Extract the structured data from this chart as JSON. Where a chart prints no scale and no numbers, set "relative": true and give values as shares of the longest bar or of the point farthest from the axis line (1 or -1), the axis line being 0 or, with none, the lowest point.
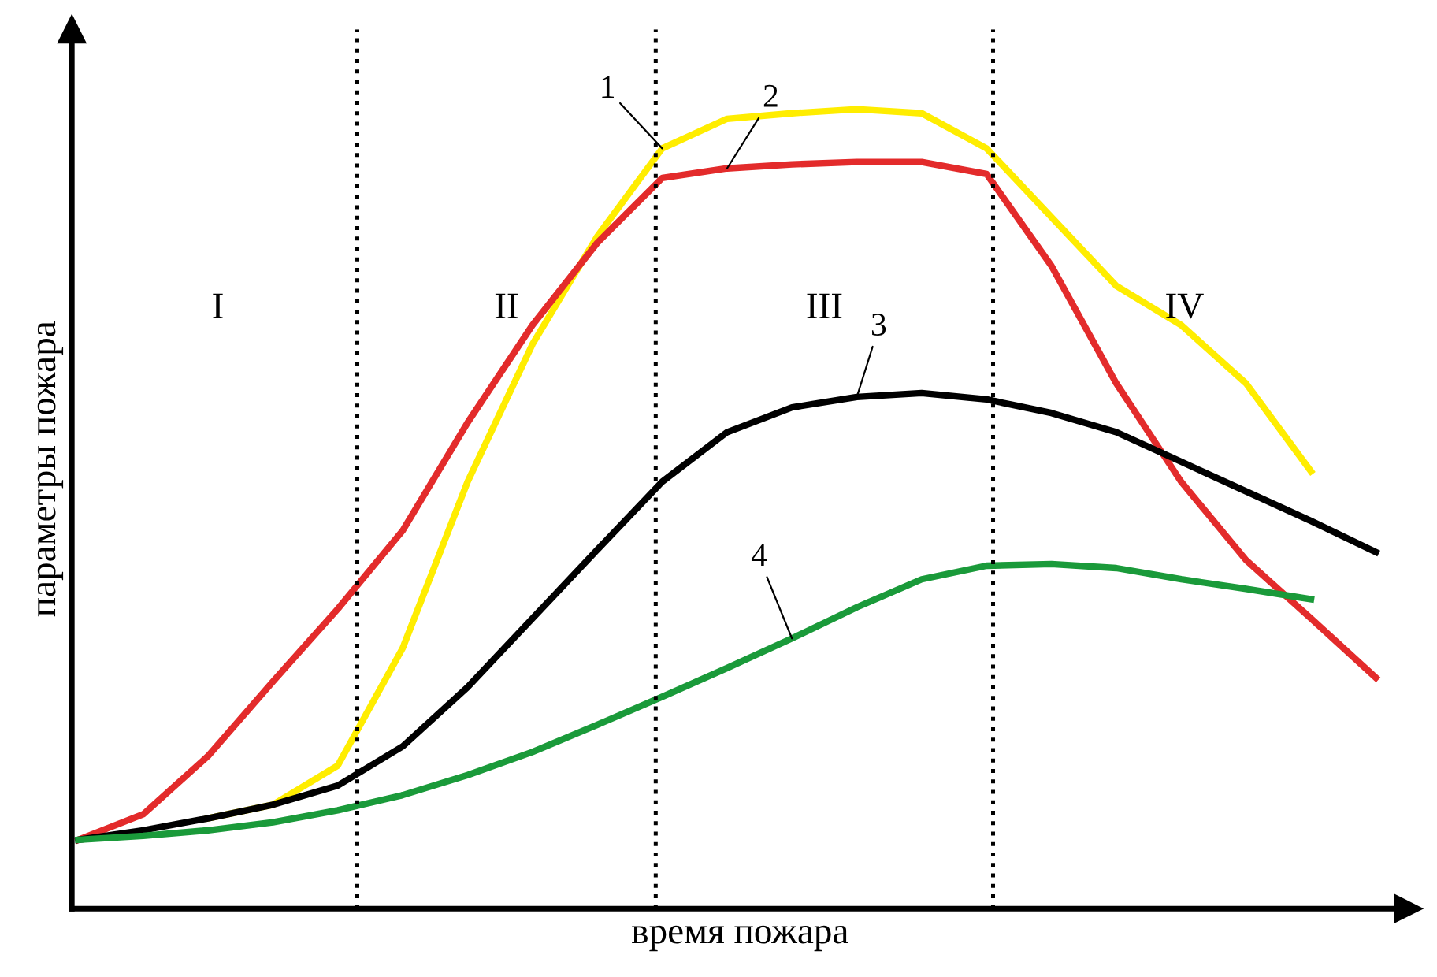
{
  "chart_data": {
    "type": "line",
    "relative": true,
    "xlabel": "время пожара",
    "ylabel": "параметры пожара",
    "categories": [
      null,
      null,
      null,
      null,
      null,
      null,
      null,
      null,
      null,
      null,
      null,
      null,
      null,
      null,
      null,
      null,
      null,
      null,
      null,
      null,
      null
    ],
    "series": [
      {
        "name": "1",
        "color": "#ffed00",
        "values": [
          null,
          null,
          0.113,
          0.13,
          0.179,
          0.326,
          0.534,
          0.706,
          0.841,
          0.951,
          0.988,
          0.995,
          1.0,
          0.995,
          0.951,
          0.865,
          0.779,
          0.73,
          0.657,
          0.547,
          null
        ]
      },
      {
        "name": "2",
        "color": "#e32b2b",
        "values": [
          0.086,
          0.118,
          0.191,
          0.284,
          0.375,
          0.473,
          0.608,
          0.73,
          0.833,
          0.914,
          0.926,
          0.931,
          0.934,
          0.934,
          0.919,
          0.804,
          0.657,
          0.534,
          0.436,
          0.363,
          0.289
        ]
      },
      {
        "name": "3",
        "color": "#000000",
        "values": [
          0.086,
          0.098,
          0.113,
          0.13,
          0.154,
          0.203,
          0.277,
          0.363,
          0.449,
          0.534,
          0.596,
          0.627,
          0.64,
          0.645,
          0.637,
          0.62,
          0.596,
          0.559,
          0.522,
          0.485,
          0.446
        ]
      },
      {
        "name": "4",
        "color": "#1a9a3a",
        "values": [
          0.086,
          0.091,
          0.098,
          0.108,
          0.123,
          0.142,
          0.167,
          0.196,
          0.23,
          0.265,
          0.301,
          0.338,
          0.377,
          0.412,
          0.429,
          0.431,
          0.426,
          0.412,
          0.4,
          0.387,
          null
        ]
      }
    ],
    "annotations": [
      "I",
      "II",
      "III",
      "IV"
    ],
    "legend": false,
    "marker": "none",
    "line_style": "solid"
  }
}
